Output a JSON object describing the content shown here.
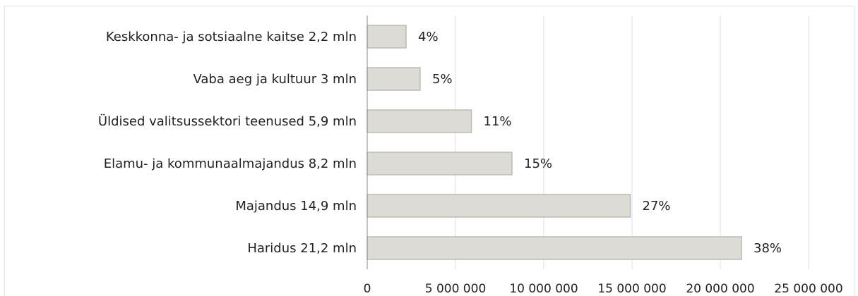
{
  "chart_data": {
    "type": "bar",
    "orientation": "horizontal",
    "categories": [
      "Keskkonna- ja sotsiaalne kaitse 2,2 mln",
      "Vaba aeg ja kultuur 3 mln",
      "Üldised valitsussektori teenused 5,9 mln",
      "Elamu- ja kommunaalmajandus 8,2 mln",
      "Majandus 14,9 mln",
      "Haridus 21,2 mln"
    ],
    "values": [
      2200000,
      3000000,
      5900000,
      8200000,
      14900000,
      21200000
    ],
    "data_labels": [
      "4%",
      "5%",
      "11%",
      "15%",
      "27%",
      "38%"
    ],
    "xlim": [
      0,
      25000000
    ],
    "x_ticks": [
      0,
      5000000,
      10000000,
      15000000,
      20000000,
      25000000
    ],
    "x_tick_labels": [
      "0",
      "5 000 000",
      "10 000 000",
      "15 000 000",
      "20 000 000",
      "25 000 000"
    ],
    "title": "",
    "xlabel": "",
    "ylabel": "",
    "grid": "vertical",
    "legend": "none",
    "colors": {
      "bar_fill": "#dddbd5",
      "bar_stroke": "#bdbab2",
      "grid": "#dcdcec",
      "axis": "#8a8a8a",
      "text": "#222222"
    }
  }
}
